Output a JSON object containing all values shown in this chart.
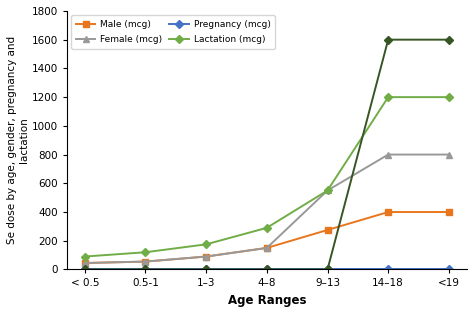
{
  "x_labels": [
    "< 0.5",
    "0.5-1",
    "1–3",
    "4–8",
    "9–13",
    "14–18",
    "<19"
  ],
  "male": [
    45,
    55,
    90,
    150,
    275,
    400,
    400
  ],
  "female": [
    45,
    55,
    90,
    150,
    550,
    800,
    800
  ],
  "pregnancy": [
    0,
    0,
    0,
    0,
    0,
    0,
    0
  ],
  "lactation": [
    90,
    120,
    175,
    290,
    550,
    1200,
    1200
  ],
  "pregnancy2": [
    0,
    0,
    0,
    0,
    0,
    1600,
    1600
  ],
  "male_color": "#E8761E",
  "female_color": "#999999",
  "pregnancy_color": "#4472C4",
  "lactation_color": "#70AD47",
  "pregnancy2_color": "#375623",
  "ylabel": "Se dose by age, gender, pregnancy and\nlactation",
  "xlabel": "Age Ranges",
  "ylim": [
    0,
    1800
  ],
  "yticks": [
    0,
    200,
    400,
    600,
    800,
    1000,
    1200,
    1400,
    1600,
    1800
  ],
  "legend_male": "Male (mcg)",
  "legend_female": "Female (mcg)",
  "legend_pregnancy": "Pregnancy (mcg)",
  "legend_lactation": "Lactation (mcg)"
}
